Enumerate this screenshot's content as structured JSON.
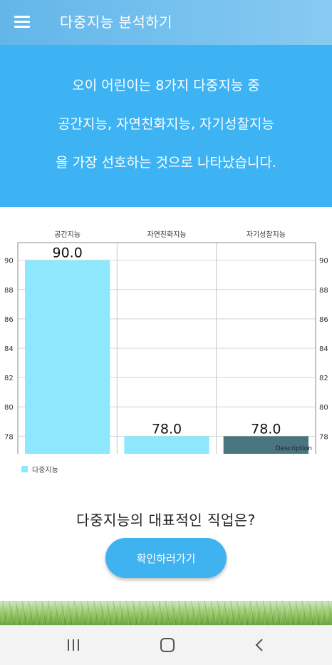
{
  "app_bar": {
    "title": "다중지능 분석하기"
  },
  "banner": {
    "lines": [
      "오이 어린이는 8가지 다중지능 중",
      "공간지능, 자연친화지능, 자기성찰지능",
      "을 가장 선호하는 것으로 나타났습니다."
    ]
  },
  "chart_data": {
    "type": "bar",
    "categories": [
      "공간지능",
      "자연친화지능",
      "자기성찰지능"
    ],
    "series": [
      {
        "name": "다중지능",
        "values": [
          90.0,
          78.0,
          78.0
        ]
      }
    ],
    "value_labels": [
      "90.0",
      "78.0",
      "78.0"
    ],
    "bar_colors": [
      "#8ee8fd",
      "#8ee8fd",
      "#4a7480"
    ],
    "ylim": [
      76.8,
      91.2
    ],
    "yticks": [
      78,
      80,
      82,
      84,
      86,
      88,
      90
    ],
    "ytick_labels": [
      "78",
      "80",
      "82",
      "84",
      "86",
      "88",
      "90"
    ],
    "description": "Description",
    "grid": true,
    "legend_position": "bottom-left"
  },
  "question": "다중지능의 대표적인 직업은?",
  "confirm_button": {
    "label": "확인하러가기"
  },
  "colors": {
    "app_bar": "#74c0ee",
    "banner": "#3db3f4",
    "bar": "#8ee8fd",
    "bar_selected": "#4a7480",
    "button": "#3fb3f0"
  },
  "icons": {
    "menu": "hamburger-menu-icon",
    "nav_recent": "recent-apps-icon",
    "nav_home": "home-icon",
    "nav_back": "back-icon"
  }
}
